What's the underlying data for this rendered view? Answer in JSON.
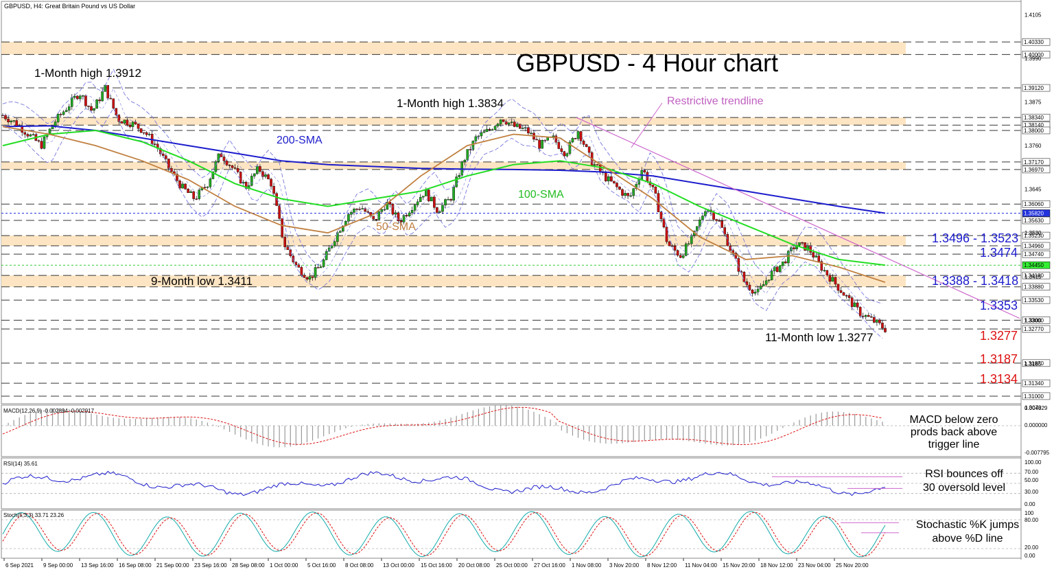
{
  "header": {
    "symbol_info": "GBPUSD, H4:  Great Britain Pound vs US Dollar",
    "title": "GBPUSD - 4 Hour chart"
  },
  "chart_data": [
    {
      "type": "line",
      "name": "price-panel",
      "ylim": [
        1.308,
        1.414
      ],
      "price_axis_ticks": [
        1.4105,
        1.399,
        1.3875,
        1.376,
        1.3645,
        1.353,
        1.3415,
        1.33,
        1.3185,
        1.307
      ],
      "level_labels": [
        {
          "value": 1.4033,
          "text": "1.40330"
        },
        {
          "value": 1.4,
          "text": "1.40000"
        },
        {
          "value": 1.3912,
          "text": "1.39120"
        },
        {
          "value": 1.3834,
          "text": "1.38340"
        },
        {
          "value": 1.3814,
          "text": "1.38140"
        },
        {
          "value": 1.38,
          "text": "1.38000"
        },
        {
          "value": 1.3717,
          "text": "1.37170"
        },
        {
          "value": 1.3697,
          "text": "1.36970"
        },
        {
          "value": 1.3606,
          "text": "1.36060"
        },
        {
          "value": 1.3582,
          "text": "1.35820"
        },
        {
          "value": 1.3563,
          "text": "1.35630"
        },
        {
          "value": 1.3523,
          "text": "1.35230"
        },
        {
          "value": 1.3496,
          "text": "1.34960"
        },
        {
          "value": 1.3474,
          "text": "1.34740"
        },
        {
          "value": 1.3445,
          "text": "1.34450"
        },
        {
          "value": 1.3418,
          "text": "1.34180"
        },
        {
          "value": 1.3388,
          "text": "1.33880"
        },
        {
          "value": 1.3353,
          "text": "1.33530"
        },
        {
          "value": 1.33,
          "text": "1.33000"
        },
        {
          "value": 1.3277,
          "text": "1.32770"
        },
        {
          "value": 1.3187,
          "text": "1.31870"
        },
        {
          "value": 1.3134,
          "text": "1.31340"
        },
        {
          "value": 1.31,
          "text": "1.31000"
        }
      ],
      "zones": [
        {
          "from": 1.4,
          "to": 1.4033
        },
        {
          "from": 1.3814,
          "to": 1.3834
        },
        {
          "from": 1.3697,
          "to": 1.3717
        },
        {
          "from": 1.3496,
          "to": 1.3523
        },
        {
          "from": 1.3388,
          "to": 1.3418
        }
      ],
      "price_path": [
        1.384,
        1.382,
        1.379,
        1.376,
        1.382,
        1.386,
        1.39,
        1.385,
        1.3912,
        1.383,
        1.382,
        1.38,
        1.376,
        1.37,
        1.365,
        1.362,
        1.366,
        1.374,
        1.37,
        1.365,
        1.37,
        1.366,
        1.35,
        1.344,
        1.3411,
        1.345,
        1.352,
        1.358,
        1.36,
        1.356,
        1.361,
        1.356,
        1.36,
        1.364,
        1.359,
        1.362,
        1.372,
        1.378,
        1.38,
        1.3834,
        1.381,
        1.38,
        1.376,
        1.378,
        1.374,
        1.38,
        1.372,
        1.368,
        1.365,
        1.362,
        1.37,
        1.363,
        1.35,
        1.347,
        1.352,
        1.36,
        1.356,
        1.348,
        1.34,
        1.337,
        1.342,
        1.345,
        1.35,
        1.349,
        1.344,
        1.34,
        1.336,
        1.332,
        1.33,
        1.3277
      ],
      "sma_200": [
        1.381,
        1.3812,
        1.38,
        1.378,
        1.376,
        1.374,
        1.372,
        1.371,
        1.3705,
        1.37,
        1.3698,
        1.3697,
        1.3695,
        1.369,
        1.368,
        1.366,
        1.364,
        1.362,
        1.36,
        1.3582
      ],
      "sma_100": [
        1.376,
        1.379,
        1.38,
        1.377,
        1.372,
        1.366,
        1.362,
        1.36,
        1.362,
        1.364,
        1.368,
        1.371,
        1.372,
        1.37,
        1.366,
        1.36,
        1.355,
        1.35,
        1.346,
        1.3445
      ],
      "sma_50": [
        1.381,
        1.379,
        1.376,
        1.372,
        1.367,
        1.36,
        1.355,
        1.353,
        1.358,
        1.368,
        1.376,
        1.379,
        1.378,
        1.37,
        1.362,
        1.352,
        1.346,
        1.347,
        1.344,
        1.34
      ],
      "annotations": [
        {
          "text": "1-Month high 1.3912",
          "color": "#000000"
        },
        {
          "text": "1-Month high 1.3834",
          "color": "#000000"
        },
        {
          "text": "Restrictive trendline",
          "color": "#c060c0"
        },
        {
          "text": "200-SMA",
          "color": "#1c1ccc"
        },
        {
          "text": "100-SMA",
          "color": "#22bb22"
        },
        {
          "text": "50-SMA",
          "color": "#c08040"
        },
        {
          "text": "9-Month low 1.3411",
          "color": "#000000"
        },
        {
          "text": "11-Month low 1.3277",
          "color": "#000000"
        },
        {
          "text": "1.3496 - 1.3523",
          "color": "#1c1ccc"
        },
        {
          "text": "1.3474",
          "color": "#1c1ccc"
        },
        {
          "text": "1.3388 - 1.3418",
          "color": "#1c1ccc"
        },
        {
          "text": "1.3353",
          "color": "#1c1ccc"
        },
        {
          "text": "1.3277",
          "color": "#dd1111"
        },
        {
          "text": "1.3187",
          "color": "#dd1111"
        },
        {
          "text": "1.3134",
          "color": "#dd1111"
        }
      ],
      "x_tick_labels": [
        "6 Sep 2021",
        "9 Sep 00:00",
        "13 Sep 16:00",
        "16 Sep 08:00",
        "21 Sep 00:00",
        "23 Sep 16:00",
        "28 Sep 08:00",
        "1 Oct 00:00",
        "5 Oct 16:00",
        "8 Oct 08:00",
        "13 Oct 00:00",
        "15 Oct 16:00",
        "20 Oct 08:00",
        "25 Oct 00:00",
        "27 Oct 16:00",
        "1 Nov 08:00",
        "3 Nov 20:00",
        "8 Nov 12:00",
        "11 Nov 04:00",
        "15 Nov 20:00",
        "18 Nov 12:00",
        "23 Nov 04:00",
        "25 Nov 20:00"
      ]
    },
    {
      "type": "bar",
      "name": "macd-panel",
      "title": "MACD(12,26,9) -0.002894 -0.002917",
      "axis_labels": [
        "0.004829",
        "0.000000",
        "-0.007795"
      ],
      "annotation": "MACD below zero\nprods back above\ntrigger line"
    },
    {
      "type": "line",
      "name": "rsi-panel",
      "title": "RSI(14) 35.61",
      "ylim": [
        0,
        100
      ],
      "axis_labels": [
        "100.00",
        "70.00",
        "50.00",
        "30.00",
        "0.00"
      ],
      "annotation": "RSI bounces off\n30 oversold level"
    },
    {
      "type": "line",
      "name": "stoch-panel",
      "title": "Stoch(5,3,3) 33.71 23.26",
      "ylim": [
        0,
        100
      ],
      "axis_labels": [
        "100",
        "80.00",
        "20.00",
        "0.00"
      ],
      "annotation": "Stochastic %K jumps\nabove %D line"
    }
  ],
  "colors": {
    "zone": "#fde5c3",
    "sma200": "#1c1ccc",
    "sma100": "#22dd22",
    "sma50": "#c08040",
    "trendline": "#cc66cc",
    "bollinger": "#7777dd",
    "bull_candle": "#22aa22",
    "bear_candle": "#cc1111",
    "support_red": "#dd1111",
    "resistance_blue": "#1c1ccc"
  }
}
